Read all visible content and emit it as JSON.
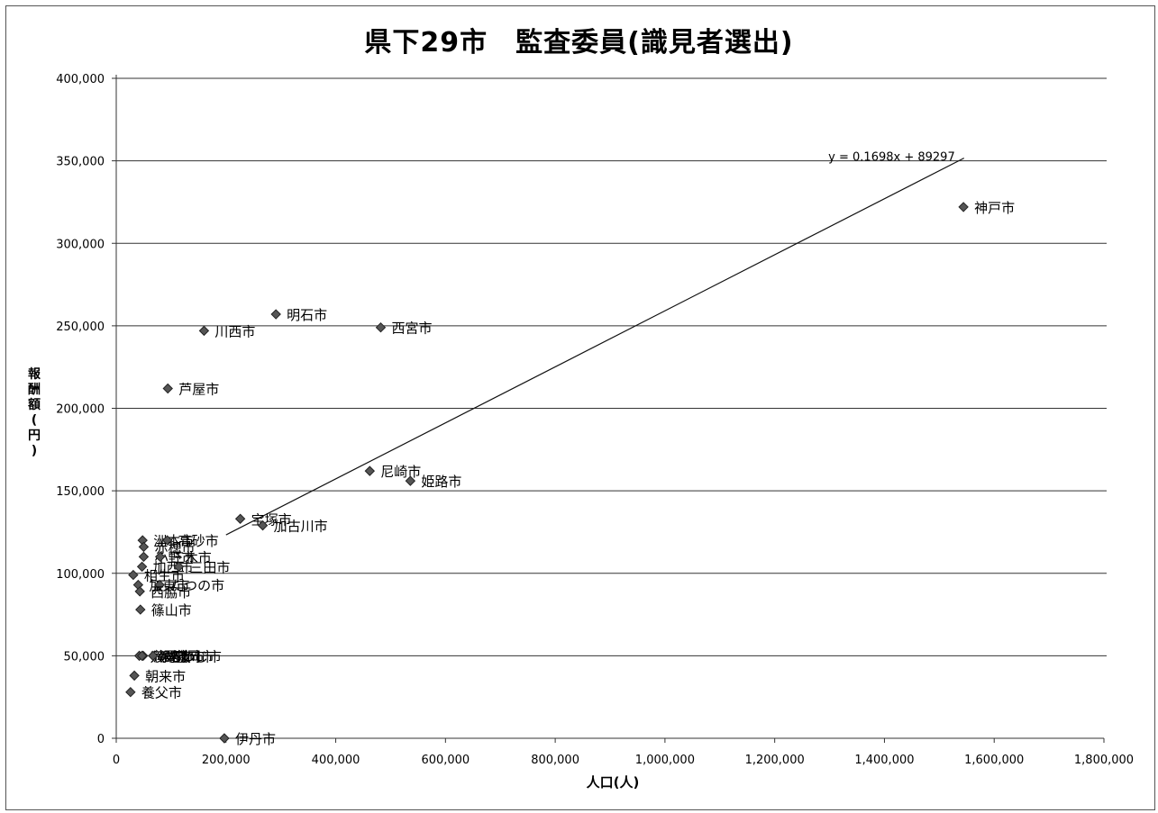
{
  "chart_data": {
    "type": "scatter",
    "title": "県下29市　監査委員(識見者選出)",
    "xlabel": "人口(人)",
    "ylabel": "報酬額(円)",
    "xlim": [
      0,
      1800000
    ],
    "ylim": [
      0,
      400000
    ],
    "x_ticks": [
      {
        "v": 0,
        "label": "0"
      },
      {
        "v": 200000,
        "label": "200,000"
      },
      {
        "v": 400000,
        "label": "400,000"
      },
      {
        "v": 600000,
        "label": "600,000"
      },
      {
        "v": 800000,
        "label": "800,000"
      },
      {
        "v": 1000000,
        "label": "1,000,000"
      },
      {
        "v": 1200000,
        "label": "1,200,000"
      },
      {
        "v": 1400000,
        "label": "1,400,000"
      },
      {
        "v": 1600000,
        "label": "1,600,000"
      },
      {
        "v": 1800000,
        "label": "1,800,000"
      }
    ],
    "y_ticks": [
      {
        "v": 0,
        "label": "0"
      },
      {
        "v": 50000,
        "label": "50,000"
      },
      {
        "v": 100000,
        "label": "100,000"
      },
      {
        "v": 150000,
        "label": "150,000"
      },
      {
        "v": 200000,
        "label": "200,000"
      },
      {
        "v": 250000,
        "label": "250,000"
      },
      {
        "v": 300000,
        "label": "300,000"
      },
      {
        "v": 350000,
        "label": "350,000"
      },
      {
        "v": 400000,
        "label": "400,000"
      }
    ],
    "grid": "horizontal",
    "marker_color": "#555555",
    "points": [
      {
        "label": "神戸市",
        "x": 1544000,
        "y": 322000
      },
      {
        "label": "明石市",
        "x": 291000,
        "y": 257000
      },
      {
        "label": "西宮市",
        "x": 482000,
        "y": 249000
      },
      {
        "label": "川西市",
        "x": 160000,
        "y": 247000
      },
      {
        "label": "芦屋市",
        "x": 94000,
        "y": 212000
      },
      {
        "label": "尼崎市",
        "x": 462000,
        "y": 162000
      },
      {
        "label": "姫路市",
        "x": 536000,
        "y": 156000
      },
      {
        "label": "宝塚市",
        "x": 226000,
        "y": 133000
      },
      {
        "label": "加古川市",
        "x": 267000,
        "y": 129000
      },
      {
        "label": "洲本市",
        "x": 48000,
        "y": 120000
      },
      {
        "label": "高砂市",
        "x": 93000,
        "y": 120000
      },
      {
        "label": "赤穂市",
        "x": 50000,
        "y": 116000
      },
      {
        "label": "小野市",
        "x": 50000,
        "y": 110000
      },
      {
        "label": "三木市",
        "x": 80000,
        "y": 110000
      },
      {
        "label": "相生市",
        "x": 31000,
        "y": 99000
      },
      {
        "label": "加西市",
        "x": 47000,
        "y": 104000
      },
      {
        "label": "三田市",
        "x": 114000,
        "y": 104000
      },
      {
        "label": "加東市",
        "x": 40000,
        "y": 93000
      },
      {
        "label": "たつの市",
        "x": 79000,
        "y": 93000
      },
      {
        "label": "西脇市",
        "x": 43000,
        "y": 89000
      },
      {
        "label": "篠山市",
        "x": 44000,
        "y": 78000
      },
      {
        "label": "宍粟市",
        "x": 42000,
        "y": 50000
      },
      {
        "label": "豊岡市",
        "x": 85000,
        "y": 50000
      },
      {
        "label": "南あわじ市",
        "x": 49000,
        "y": 50000
      },
      {
        "label": "淡路市",
        "x": 47000,
        "y": 50000
      },
      {
        "label": "丹波市",
        "x": 67000,
        "y": 50000
      },
      {
        "label": "朝来市",
        "x": 33000,
        "y": 38000
      },
      {
        "label": "養父市",
        "x": 26000,
        "y": 28000
      },
      {
        "label": "伊丹市",
        "x": 197000,
        "y": 0
      }
    ],
    "trendline": {
      "equation": "y = 0.1698x + 89297",
      "slope": 0.1698,
      "intercept": 89297,
      "x_range": [
        200000,
        1545000
      ]
    }
  }
}
